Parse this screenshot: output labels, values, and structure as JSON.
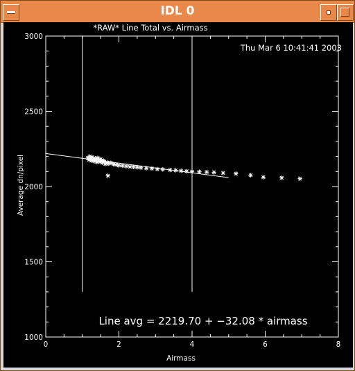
{
  "window": {
    "title": "IDL 0"
  },
  "plot": {
    "title": "*RAW* Line Total vs. Airmass",
    "timestamp": "Thu Mar  6 10:41:41 2003",
    "annotation": "Line avg = 2219.70 + −32.08 * airmass"
  },
  "chart_data": {
    "type": "scatter",
    "title": "*RAW* Line Total vs. Airmass",
    "xlabel": "Airmass",
    "ylabel": "Average dn/pixel",
    "xlim": [
      0,
      8
    ],
    "ylim": [
      1000,
      3000
    ],
    "x_ticks": [
      0,
      2,
      4,
      6,
      8
    ],
    "y_ticks": [
      1000,
      1500,
      2000,
      2500,
      3000
    ],
    "vertical_lines": [
      1.0,
      4.0
    ],
    "vertical_line_range": [
      1300,
      3000
    ],
    "fit_line": {
      "intercept": 2219.7,
      "slope": -32.08,
      "x_range": [
        0,
        5.0
      ]
    },
    "series": [
      {
        "marker": "asterisk",
        "points": [
          [
            1.15,
            2190
          ],
          [
            1.18,
            2178
          ],
          [
            1.2,
            2200
          ],
          [
            1.22,
            2185
          ],
          [
            1.25,
            2172
          ],
          [
            1.27,
            2195
          ],
          [
            1.3,
            2180
          ],
          [
            1.33,
            2168
          ],
          [
            1.35,
            2188
          ],
          [
            1.38,
            2175
          ],
          [
            1.4,
            2162
          ],
          [
            1.42,
            2190
          ],
          [
            1.45,
            2178
          ],
          [
            1.48,
            2165
          ],
          [
            1.5,
            2182
          ],
          [
            1.53,
            2170
          ],
          [
            1.55,
            2158
          ],
          [
            1.58,
            2172
          ],
          [
            1.6,
            2165
          ],
          [
            1.63,
            2150
          ],
          [
            1.68,
            2160
          ],
          [
            1.72,
            2152
          ],
          [
            1.78,
            2158
          ],
          [
            1.85,
            2148
          ],
          [
            1.92,
            2145
          ],
          [
            2.0,
            2140
          ],
          [
            2.1,
            2138
          ],
          [
            2.2,
            2135
          ],
          [
            2.3,
            2132
          ],
          [
            2.4,
            2130
          ],
          [
            2.5,
            2128
          ],
          [
            2.6,
            2125
          ],
          [
            2.75,
            2122
          ],
          [
            2.9,
            2120
          ],
          [
            3.05,
            2116
          ],
          [
            3.2,
            2114
          ],
          [
            3.4,
            2110
          ],
          [
            3.55,
            2108
          ],
          [
            3.7,
            2105
          ],
          [
            3.85,
            2102
          ],
          [
            4.0,
            2100
          ],
          [
            4.2,
            2098
          ],
          [
            4.4,
            2096
          ],
          [
            4.6,
            2094
          ],
          [
            4.85,
            2090
          ],
          [
            5.2,
            2086
          ],
          [
            5.6,
            2075
          ],
          [
            5.95,
            2062
          ],
          [
            6.45,
            2058
          ],
          [
            6.95,
            2052
          ],
          [
            1.7,
            2072
          ]
        ]
      }
    ]
  }
}
